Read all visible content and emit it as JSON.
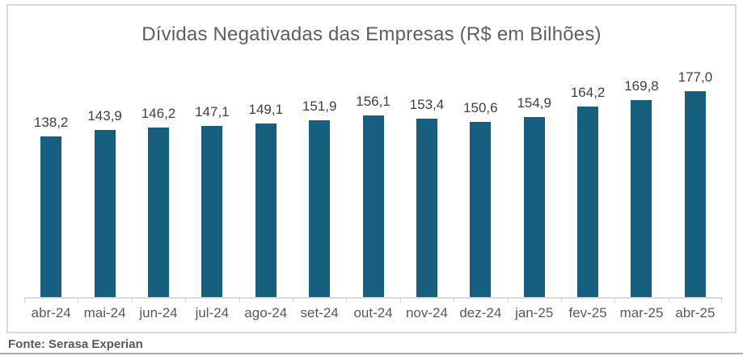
{
  "colors": {
    "bar": "#175f7f",
    "title_text": "#5f5f5f",
    "value_label": "#404040",
    "axis_label": "#595959",
    "box_border": "#d9d9d9",
    "source_text": "#595959",
    "divider": "#a9a9a9"
  },
  "chart_data": {
    "type": "bar",
    "title": "Dívidas Negativadas das Empresas (R$ em Bilhões)",
    "categories": [
      "abr-24",
      "mai-24",
      "jun-24",
      "jul-24",
      "ago-24",
      "set-24",
      "out-24",
      "nov-24",
      "dez-24",
      "jan-25",
      "fev-25",
      "mar-25",
      "abr-25"
    ],
    "values": [
      138.2,
      143.9,
      146.2,
      147.1,
      149.1,
      151.9,
      156.1,
      153.4,
      150.6,
      154.9,
      164.2,
      169.8,
      177.0
    ],
    "labels": [
      "138,2",
      "143,9",
      "146,2",
      "147,1",
      "149,1",
      "151,9",
      "156,1",
      "153,4",
      "150,6",
      "154,9",
      "164,2",
      "169,8",
      "177,0"
    ],
    "xlabel": "",
    "ylabel": "",
    "ylim": [
      0,
      180
    ],
    "grid": false,
    "legend": null,
    "source": "Fonte: Serasa Experian"
  }
}
